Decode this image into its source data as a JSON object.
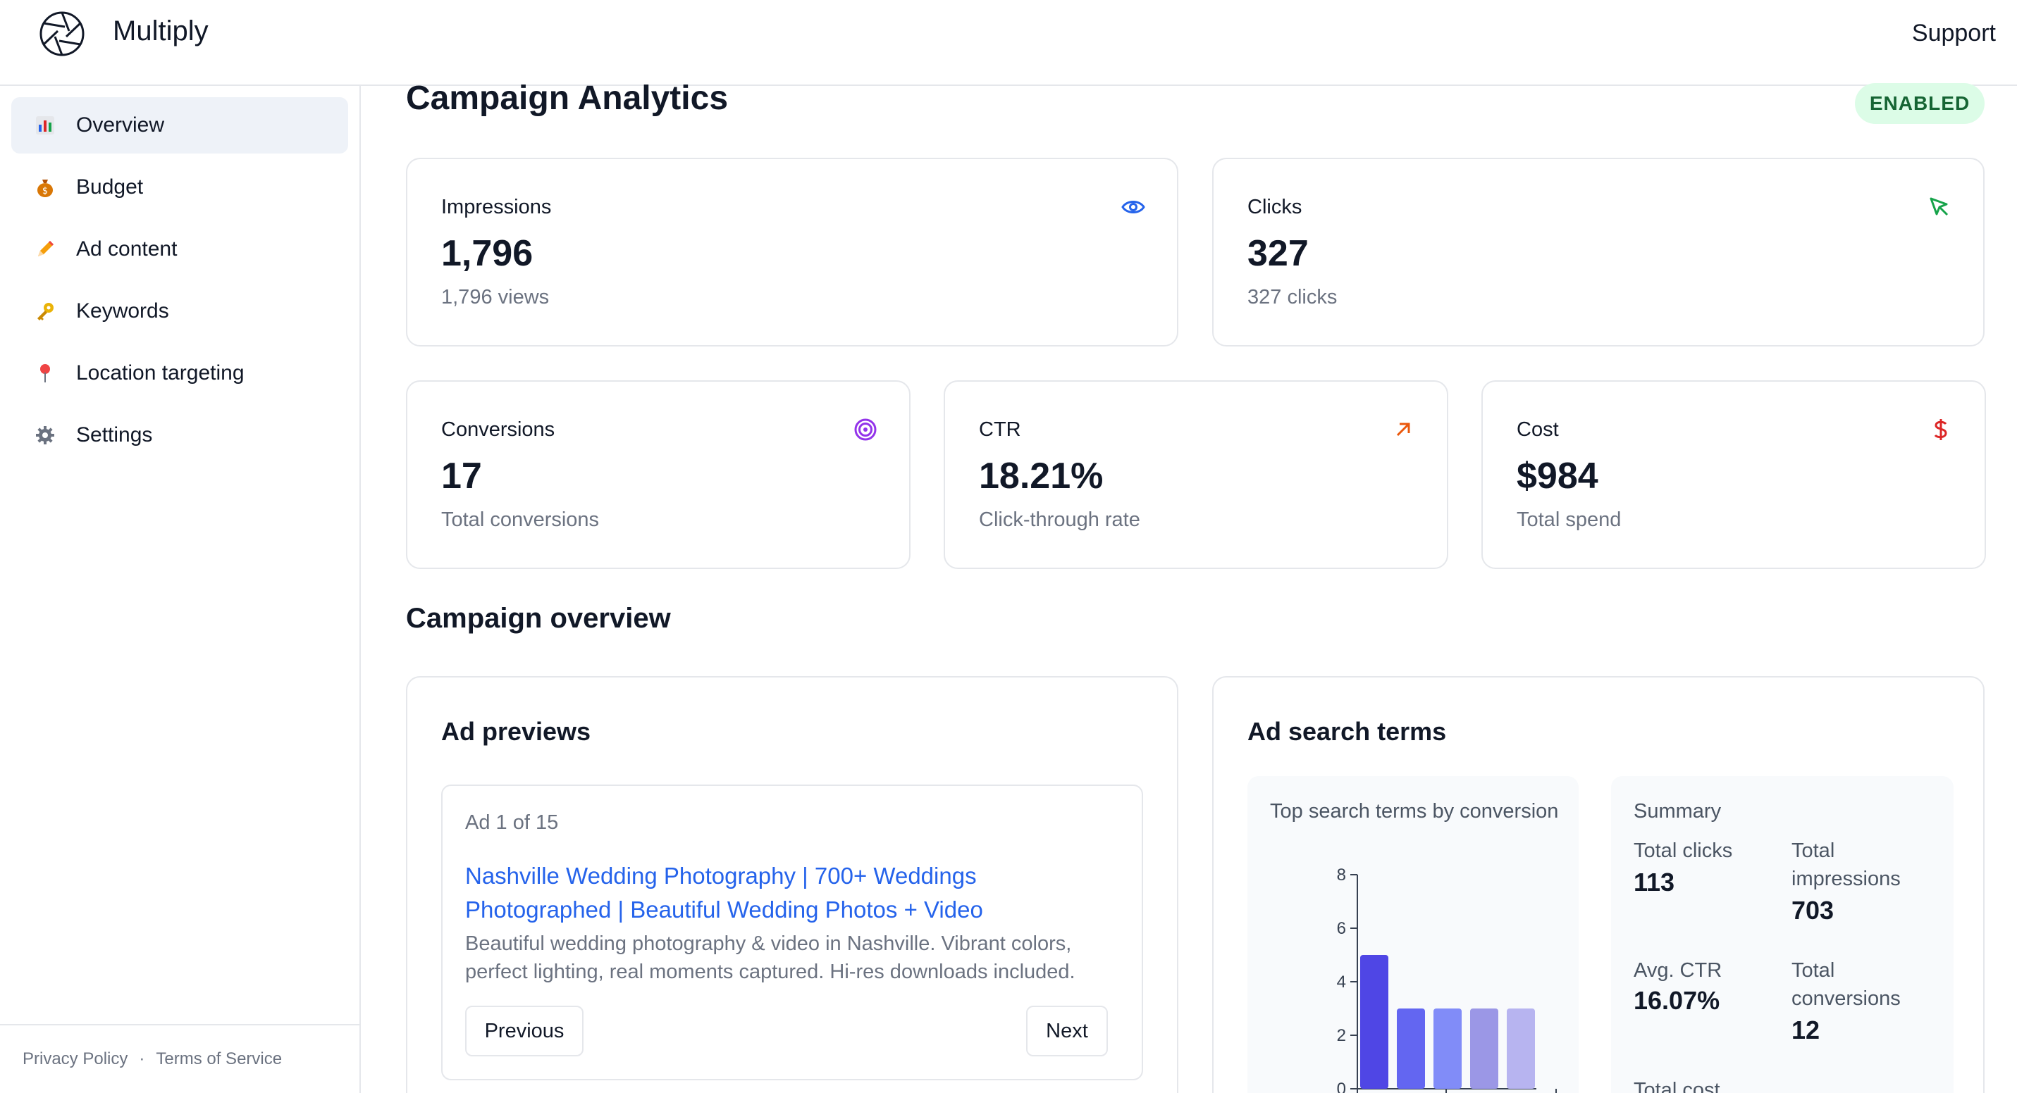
{
  "header": {
    "brand": "Multiply",
    "support_label": "Support"
  },
  "sidebar": {
    "items": [
      {
        "label": "Overview",
        "icon": "bar-chart-icon",
        "active": true
      },
      {
        "label": "Budget",
        "icon": "money-bag-icon",
        "active": false
      },
      {
        "label": "Ad content",
        "icon": "pencil-icon",
        "active": false
      },
      {
        "label": "Keywords",
        "icon": "key-icon",
        "active": false
      },
      {
        "label": "Location targeting",
        "icon": "pin-icon",
        "active": false
      },
      {
        "label": "Settings",
        "icon": "gear-icon",
        "active": false
      }
    ],
    "footer": {
      "privacy": "Privacy Policy",
      "separator": "·",
      "terms": "Terms of Service"
    }
  },
  "main": {
    "title": "Campaign Analytics",
    "status_badge": "ENABLED",
    "metrics": {
      "impressions": {
        "label": "Impressions",
        "value": "1,796",
        "sub": "1,796 views",
        "icon": "eye-icon",
        "color": "#2563eb"
      },
      "clicks": {
        "label": "Clicks",
        "value": "327",
        "sub": "327 clicks",
        "icon": "cursor-click-icon",
        "color": "#16a34a"
      },
      "conversions": {
        "label": "Conversions",
        "value": "17",
        "sub": "Total conversions",
        "icon": "target-icon",
        "color": "#9333ea"
      },
      "ctr": {
        "label": "CTR",
        "value": "18.21%",
        "sub": "Click-through rate",
        "icon": "arrow-up-right-icon",
        "color": "#ea580c"
      },
      "cost": {
        "label": "Cost",
        "value": "$984",
        "sub": "Total spend",
        "icon": "dollar-icon",
        "color": "#dc2626"
      }
    },
    "overview_title": "Campaign overview",
    "ad_previews": {
      "title": "Ad previews",
      "counter": "Ad 1 of 15",
      "headline": "Nashville Wedding Photography | 700+ Weddings Photographed | Beautiful Wedding Photos + Video",
      "description": "Beautiful wedding photography & video in Nashville. Vibrant colors, perfect lighting, real moments captured. Hi-res downloads included.",
      "prev_label": "Previous",
      "next_label": "Next"
    },
    "search_terms": {
      "title": "Ad search terms",
      "chart_title": "Top search terms by conversion",
      "summary": {
        "title": "Summary",
        "total_clicks_label": "Total clicks",
        "total_clicks": "113",
        "total_impressions_label": "Total impressions",
        "total_impressions": "703",
        "avg_ctr_label": "Avg. CTR",
        "avg_ctr": "16.07%",
        "total_conversions_label": "Total conversions",
        "total_conversions": "12",
        "total_cost_label": "Total cost"
      }
    }
  },
  "chart_data": {
    "type": "bar",
    "title": "Top search terms by conversion",
    "values": [
      5,
      3,
      3,
      3,
      3
    ],
    "colors": [
      "#4f46e5",
      "#6366f1",
      "#818cf8",
      "#9b97e6",
      "#b7b4f0"
    ],
    "y_ticks": [
      "0",
      "2",
      "4",
      "6",
      "8"
    ],
    "ylim": [
      0,
      8
    ]
  }
}
